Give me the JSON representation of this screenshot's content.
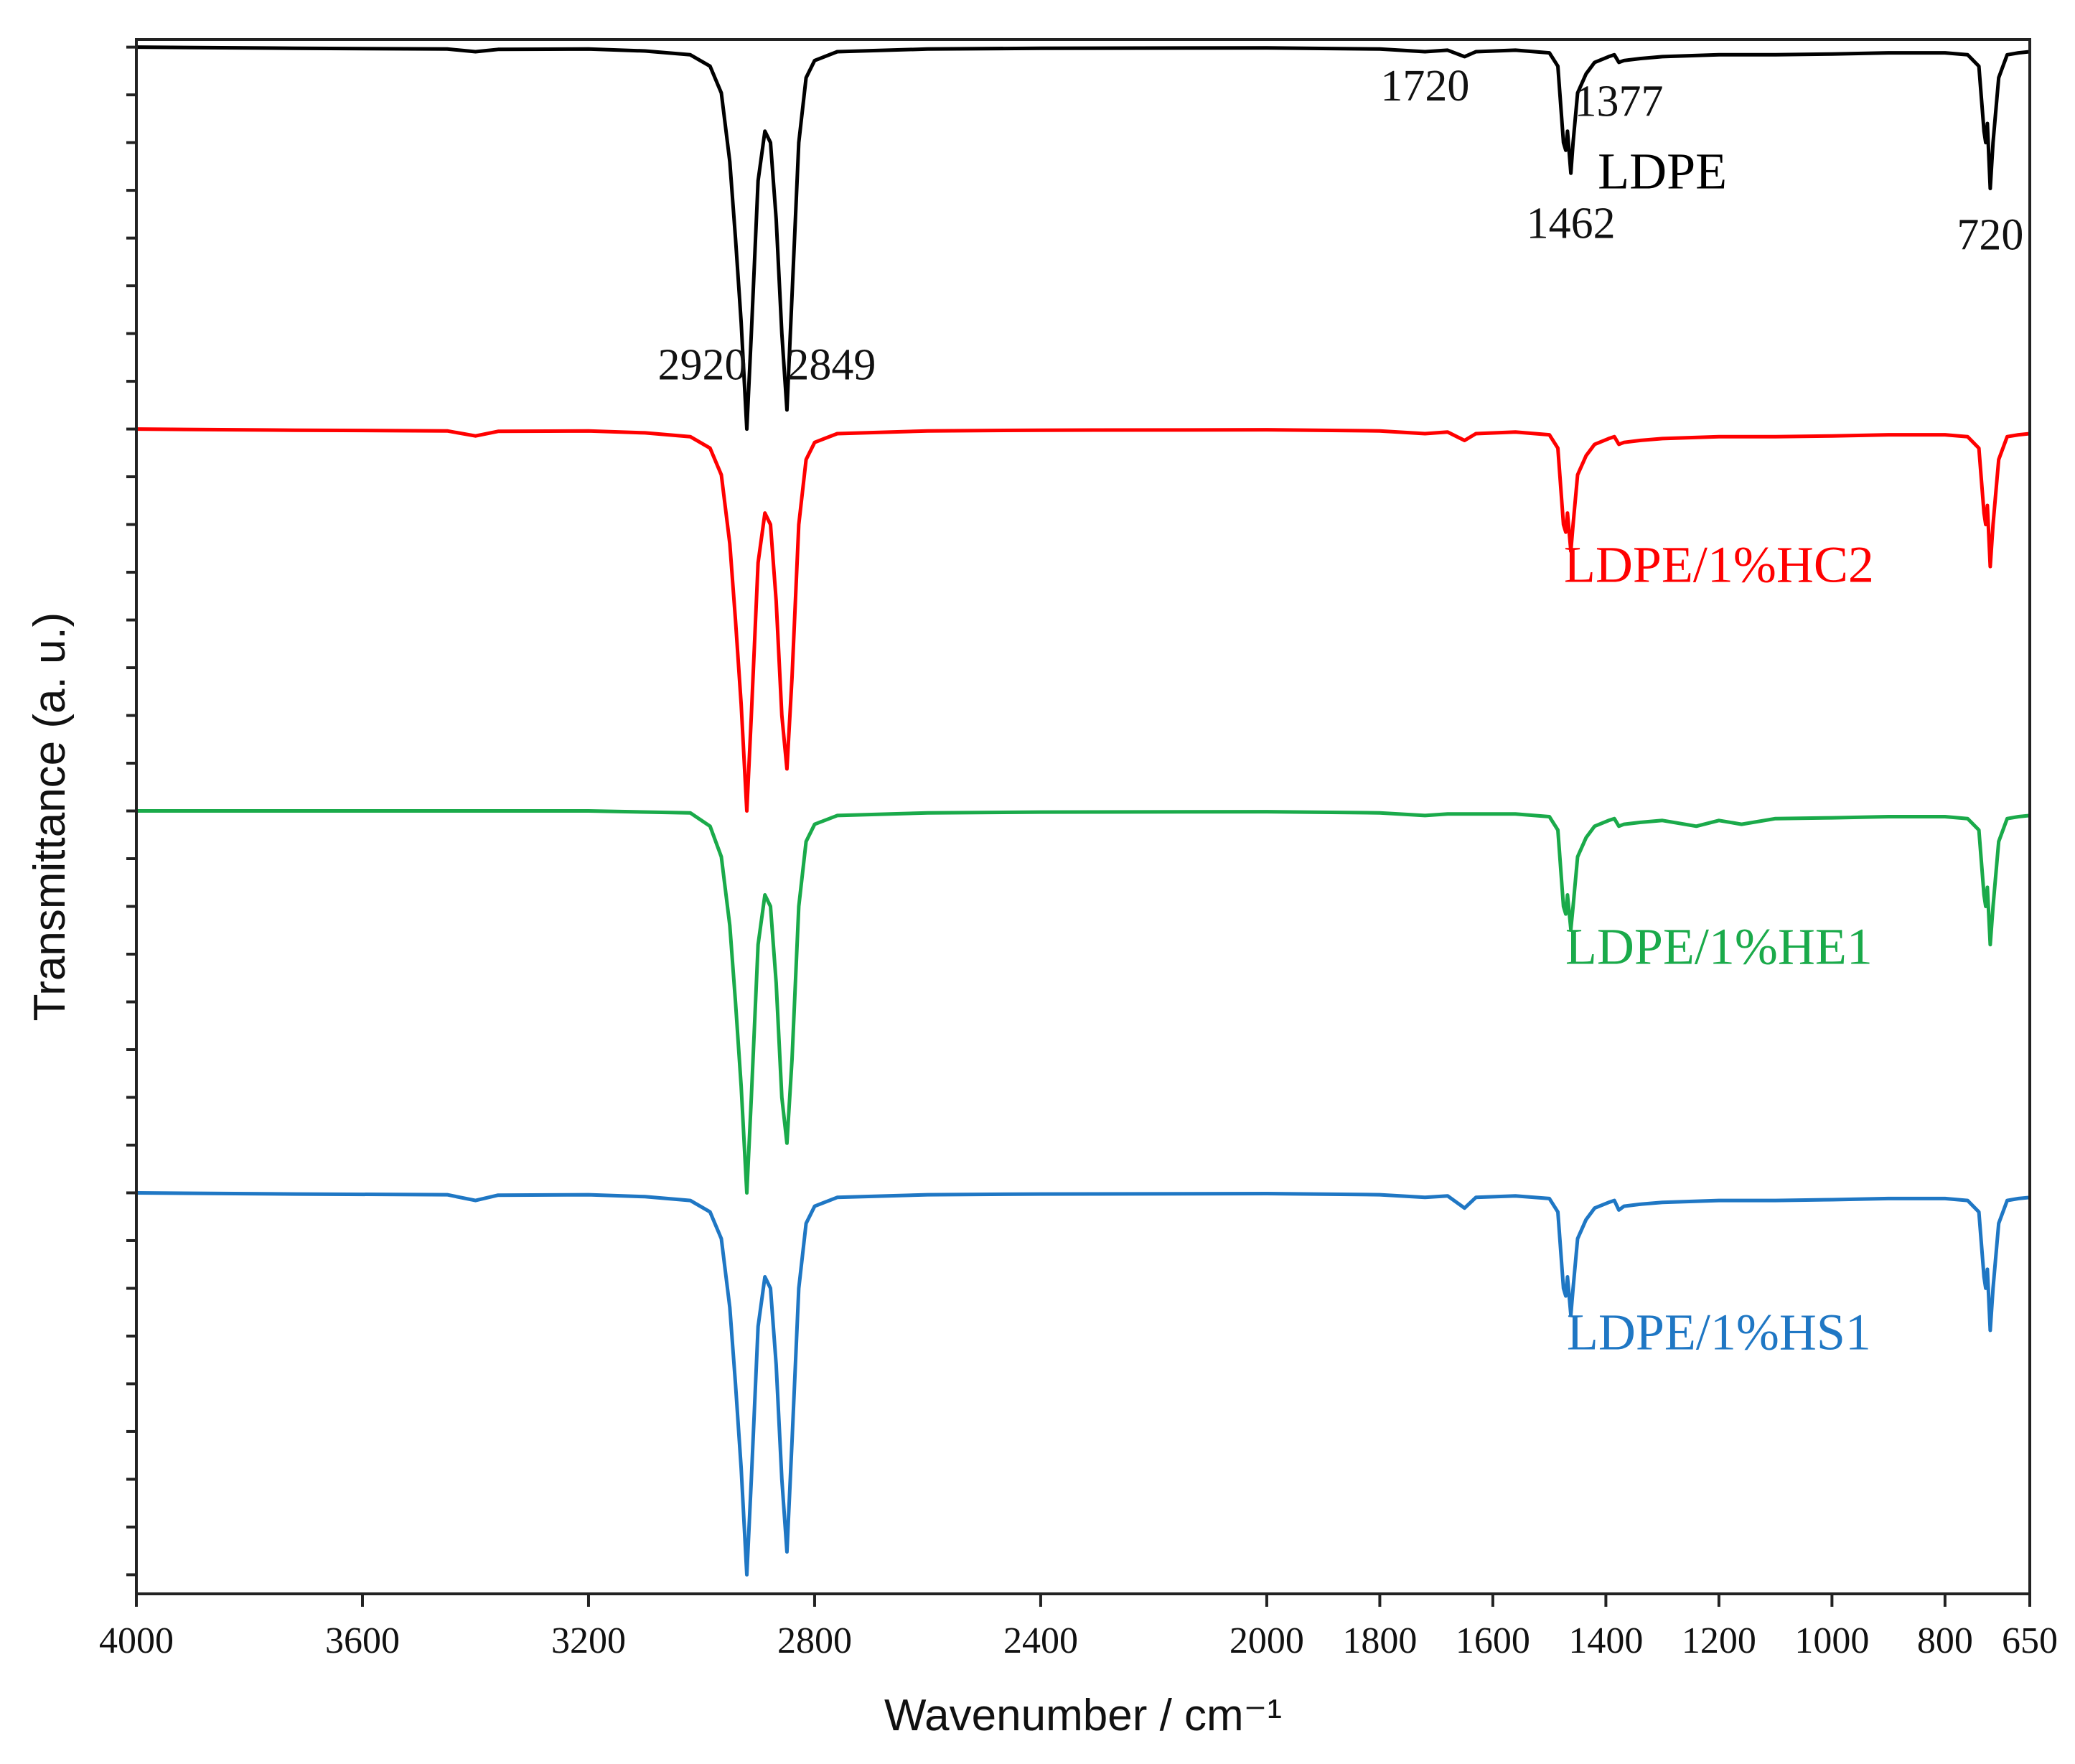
{
  "chart_data": {
    "type": "line",
    "title": "",
    "xlabel": "Wavenumber / cm⁻¹",
    "ylabel": "Transmittance (a. u.)",
    "xlim": [
      4000,
      650
    ],
    "x_reversed": true,
    "ylim": [
      -4.05,
      0.02
    ],
    "y_tick_labels": "none",
    "grid": false,
    "x_ticks": [
      4000,
      3600,
      3200,
      2800,
      2400,
      2000,
      1800,
      1600,
      1400,
      1200,
      1000,
      800,
      650
    ],
    "x_tick_labels": [
      "4000",
      "3600",
      "3200",
      "2800",
      "2400",
      "2000",
      "1800",
      "1600",
      "1400",
      "1200",
      "1000",
      "800",
      "650"
    ],
    "y_minor_ticks": [
      0,
      -0.125,
      -0.25,
      -0.375,
      -0.5,
      -0.625,
      -0.75,
      -0.875,
      -1.0,
      -1.125,
      -1.25,
      -1.375,
      -1.5,
      -1.625,
      -1.75,
      -1.875,
      -2.0,
      -2.125,
      -2.25,
      -2.375,
      -2.5,
      -2.625,
      -2.75,
      -2.875,
      -3.0,
      -3.125,
      -3.25,
      -3.375,
      -3.5,
      -3.625,
      -3.75,
      -3.875,
      -4.0
    ],
    "series": [
      {
        "name": "LDPE",
        "label": "LDPE",
        "color": "#000000",
        "offset": 0,
        "points": [
          [
            4000,
            0
          ],
          [
            3720,
            -0.003
          ],
          [
            3450,
            -0.005
          ],
          [
            3400,
            -0.012
          ],
          [
            3360,
            -0.006
          ],
          [
            3200,
            -0.005
          ],
          [
            3100,
            -0.01
          ],
          [
            3020,
            -0.02
          ],
          [
            2985,
            -0.05
          ],
          [
            2965,
            -0.12
          ],
          [
            2950,
            -0.3
          ],
          [
            2940,
            -0.5
          ],
          [
            2930,
            -0.72
          ],
          [
            2920,
            -1.0
          ],
          [
            2912,
            -0.75
          ],
          [
            2900,
            -0.35
          ],
          [
            2888,
            -0.22
          ],
          [
            2878,
            -0.25
          ],
          [
            2868,
            -0.45
          ],
          [
            2858,
            -0.75
          ],
          [
            2849,
            -0.95
          ],
          [
            2840,
            -0.65
          ],
          [
            2828,
            -0.25
          ],
          [
            2815,
            -0.08
          ],
          [
            2800,
            -0.035
          ],
          [
            2760,
            -0.012
          ],
          [
            2600,
            -0.005
          ],
          [
            2400,
            -0.003
          ],
          [
            2000,
            -0.002
          ],
          [
            1800,
            -0.005
          ],
          [
            1720,
            -0.012
          ],
          [
            1680,
            -0.008
          ],
          [
            1650,
            -0.025
          ],
          [
            1630,
            -0.012
          ],
          [
            1560,
            -0.008
          ],
          [
            1500,
            -0.015
          ],
          [
            1485,
            -0.05
          ],
          [
            1475,
            -0.25
          ],
          [
            1471,
            -0.27
          ],
          [
            1468,
            -0.22
          ],
          [
            1462,
            -0.33
          ],
          [
            1458,
            -0.25
          ],
          [
            1450,
            -0.12
          ],
          [
            1435,
            -0.07
          ],
          [
            1420,
            -0.04
          ],
          [
            1395,
            -0.025
          ],
          [
            1385,
            -0.02
          ],
          [
            1377,
            -0.04
          ],
          [
            1368,
            -0.035
          ],
          [
            1340,
            -0.03
          ],
          [
            1300,
            -0.025
          ],
          [
            1200,
            -0.02
          ],
          [
            1100,
            -0.02
          ],
          [
            1000,
            -0.018
          ],
          [
            900,
            -0.015
          ],
          [
            800,
            -0.015
          ],
          [
            760,
            -0.02
          ],
          [
            740,
            -0.05
          ],
          [
            731,
            -0.22
          ],
          [
            728,
            -0.25
          ],
          [
            725,
            -0.2
          ],
          [
            720,
            -0.37
          ],
          [
            715,
            -0.25
          ],
          [
            705,
            -0.08
          ],
          [
            690,
            -0.02
          ],
          [
            670,
            -0.015
          ],
          [
            650,
            -0.012
          ]
        ]
      },
      {
        "name": "LDPE/1%HC2",
        "label": "LDPE/1%HC2",
        "color": "#ff0000",
        "offset": -1,
        "points": [
          [
            4000,
            0
          ],
          [
            3720,
            -0.003
          ],
          [
            3450,
            -0.005
          ],
          [
            3400,
            -0.018
          ],
          [
            3360,
            -0.006
          ],
          [
            3200,
            -0.005
          ],
          [
            3100,
            -0.01
          ],
          [
            3020,
            -0.02
          ],
          [
            2985,
            -0.05
          ],
          [
            2965,
            -0.12
          ],
          [
            2950,
            -0.3
          ],
          [
            2940,
            -0.5
          ],
          [
            2930,
            -0.72
          ],
          [
            2920,
            -1.0
          ],
          [
            2912,
            -0.75
          ],
          [
            2900,
            -0.35
          ],
          [
            2888,
            -0.22
          ],
          [
            2878,
            -0.25
          ],
          [
            2868,
            -0.45
          ],
          [
            2858,
            -0.75
          ],
          [
            2849,
            -0.89
          ],
          [
            2840,
            -0.65
          ],
          [
            2828,
            -0.25
          ],
          [
            2815,
            -0.08
          ],
          [
            2800,
            -0.035
          ],
          [
            2760,
            -0.012
          ],
          [
            2600,
            -0.005
          ],
          [
            2400,
            -0.003
          ],
          [
            2000,
            -0.002
          ],
          [
            1800,
            -0.005
          ],
          [
            1720,
            -0.012
          ],
          [
            1680,
            -0.008
          ],
          [
            1650,
            -0.03
          ],
          [
            1630,
            -0.012
          ],
          [
            1560,
            -0.008
          ],
          [
            1500,
            -0.015
          ],
          [
            1485,
            -0.05
          ],
          [
            1475,
            -0.25
          ],
          [
            1471,
            -0.27
          ],
          [
            1468,
            -0.22
          ],
          [
            1462,
            -0.32
          ],
          [
            1458,
            -0.25
          ],
          [
            1450,
            -0.12
          ],
          [
            1435,
            -0.07
          ],
          [
            1420,
            -0.04
          ],
          [
            1395,
            -0.025
          ],
          [
            1385,
            -0.02
          ],
          [
            1377,
            -0.04
          ],
          [
            1368,
            -0.035
          ],
          [
            1340,
            -0.03
          ],
          [
            1300,
            -0.025
          ],
          [
            1200,
            -0.02
          ],
          [
            1100,
            -0.02
          ],
          [
            1000,
            -0.018
          ],
          [
            900,
            -0.015
          ],
          [
            800,
            -0.015
          ],
          [
            760,
            -0.02
          ],
          [
            740,
            -0.05
          ],
          [
            731,
            -0.22
          ],
          [
            728,
            -0.25
          ],
          [
            725,
            -0.2
          ],
          [
            720,
            -0.36
          ],
          [
            715,
            -0.25
          ],
          [
            705,
            -0.08
          ],
          [
            690,
            -0.02
          ],
          [
            670,
            -0.015
          ],
          [
            650,
            -0.012
          ]
        ]
      },
      {
        "name": "LDPE/1%HE1",
        "label": "LDPE/1%HE1",
        "color": "#1aaa4a",
        "offset": -2,
        "points": [
          [
            4000,
            0
          ],
          [
            3600,
            0
          ],
          [
            3200,
            0
          ],
          [
            3020,
            -0.005
          ],
          [
            2985,
            -0.04
          ],
          [
            2965,
            -0.12
          ],
          [
            2950,
            -0.3
          ],
          [
            2940,
            -0.5
          ],
          [
            2930,
            -0.72
          ],
          [
            2920,
            -1.0
          ],
          [
            2912,
            -0.75
          ],
          [
            2900,
            -0.35
          ],
          [
            2888,
            -0.22
          ],
          [
            2878,
            -0.25
          ],
          [
            2868,
            -0.45
          ],
          [
            2858,
            -0.75
          ],
          [
            2849,
            -0.87
          ],
          [
            2840,
            -0.65
          ],
          [
            2828,
            -0.25
          ],
          [
            2815,
            -0.08
          ],
          [
            2800,
            -0.035
          ],
          [
            2760,
            -0.012
          ],
          [
            2600,
            -0.005
          ],
          [
            2400,
            -0.003
          ],
          [
            2000,
            -0.002
          ],
          [
            1800,
            -0.005
          ],
          [
            1720,
            -0.012
          ],
          [
            1680,
            -0.008
          ],
          [
            1560,
            -0.008
          ],
          [
            1500,
            -0.015
          ],
          [
            1485,
            -0.05
          ],
          [
            1475,
            -0.25
          ],
          [
            1471,
            -0.27
          ],
          [
            1468,
            -0.22
          ],
          [
            1462,
            -0.31
          ],
          [
            1458,
            -0.25
          ],
          [
            1450,
            -0.12
          ],
          [
            1435,
            -0.07
          ],
          [
            1420,
            -0.04
          ],
          [
            1395,
            -0.025
          ],
          [
            1385,
            -0.02
          ],
          [
            1377,
            -0.04
          ],
          [
            1368,
            -0.035
          ],
          [
            1340,
            -0.03
          ],
          [
            1300,
            -0.025
          ],
          [
            1240,
            -0.04
          ],
          [
            1200,
            -0.025
          ],
          [
            1160,
            -0.035
          ],
          [
            1100,
            -0.02
          ],
          [
            1000,
            -0.018
          ],
          [
            900,
            -0.015
          ],
          [
            800,
            -0.015
          ],
          [
            760,
            -0.02
          ],
          [
            740,
            -0.05
          ],
          [
            731,
            -0.22
          ],
          [
            728,
            -0.25
          ],
          [
            725,
            -0.2
          ],
          [
            720,
            -0.35
          ],
          [
            715,
            -0.25
          ],
          [
            705,
            -0.08
          ],
          [
            690,
            -0.02
          ],
          [
            670,
            -0.015
          ],
          [
            650,
            -0.012
          ]
        ]
      },
      {
        "name": "LDPE/1%HS1",
        "label": "LDPE/1%HS1",
        "color": "#1f77c4",
        "offset": -3,
        "points": [
          [
            4000,
            0
          ],
          [
            3720,
            -0.003
          ],
          [
            3450,
            -0.005
          ],
          [
            3400,
            -0.02
          ],
          [
            3360,
            -0.006
          ],
          [
            3200,
            -0.005
          ],
          [
            3100,
            -0.01
          ],
          [
            3020,
            -0.02
          ],
          [
            2985,
            -0.05
          ],
          [
            2965,
            -0.12
          ],
          [
            2950,
            -0.3
          ],
          [
            2940,
            -0.5
          ],
          [
            2930,
            -0.72
          ],
          [
            2920,
            -1.0
          ],
          [
            2912,
            -0.75
          ],
          [
            2900,
            -0.35
          ],
          [
            2888,
            -0.22
          ],
          [
            2878,
            -0.25
          ],
          [
            2868,
            -0.45
          ],
          [
            2858,
            -0.75
          ],
          [
            2849,
            -0.94
          ],
          [
            2840,
            -0.65
          ],
          [
            2828,
            -0.25
          ],
          [
            2815,
            -0.08
          ],
          [
            2800,
            -0.035
          ],
          [
            2760,
            -0.012
          ],
          [
            2600,
            -0.005
          ],
          [
            2400,
            -0.003
          ],
          [
            2000,
            -0.002
          ],
          [
            1800,
            -0.005
          ],
          [
            1720,
            -0.012
          ],
          [
            1680,
            -0.008
          ],
          [
            1650,
            -0.04
          ],
          [
            1630,
            -0.012
          ],
          [
            1560,
            -0.008
          ],
          [
            1500,
            -0.015
          ],
          [
            1485,
            -0.05
          ],
          [
            1475,
            -0.25
          ],
          [
            1471,
            -0.27
          ],
          [
            1468,
            -0.22
          ],
          [
            1462,
            -0.32
          ],
          [
            1458,
            -0.25
          ],
          [
            1450,
            -0.12
          ],
          [
            1435,
            -0.07
          ],
          [
            1420,
            -0.04
          ],
          [
            1395,
            -0.025
          ],
          [
            1385,
            -0.02
          ],
          [
            1377,
            -0.045
          ],
          [
            1368,
            -0.035
          ],
          [
            1340,
            -0.03
          ],
          [
            1300,
            -0.025
          ],
          [
            1200,
            -0.02
          ],
          [
            1100,
            -0.02
          ],
          [
            1000,
            -0.018
          ],
          [
            900,
            -0.015
          ],
          [
            800,
            -0.015
          ],
          [
            760,
            -0.02
          ],
          [
            740,
            -0.05
          ],
          [
            731,
            -0.22
          ],
          [
            728,
            -0.25
          ],
          [
            725,
            -0.2
          ],
          [
            720,
            -0.36
          ],
          [
            715,
            -0.25
          ],
          [
            705,
            -0.08
          ],
          [
            690,
            -0.02
          ],
          [
            670,
            -0.015
          ],
          [
            650,
            -0.012
          ]
        ]
      }
    ],
    "annotations": [
      {
        "text": "2920",
        "x": 2920,
        "y": -0.87,
        "anchor": "end"
      },
      {
        "text": "2849",
        "x": 2849,
        "y": -0.87,
        "anchor": "start"
      },
      {
        "text": "1720",
        "x": 1720,
        "y": -0.14,
        "anchor": "middle"
      },
      {
        "text": "1377",
        "x": 1377,
        "y": -0.18,
        "anchor": "middle"
      },
      {
        "text": "1462",
        "x": 1462,
        "y": -0.5,
        "anchor": "middle"
      },
      {
        "text": "720",
        "x": 720,
        "y": -0.53,
        "anchor": "middle"
      }
    ],
    "series_labels": [
      {
        "series": 0,
        "x": 1300,
        "y": -0.37
      },
      {
        "series": 1,
        "x": 1200,
        "y": -1.4
      },
      {
        "series": 2,
        "x": 1200,
        "y": -2.4
      },
      {
        "series": 3,
        "x": 1200,
        "y": -3.41
      }
    ]
  }
}
